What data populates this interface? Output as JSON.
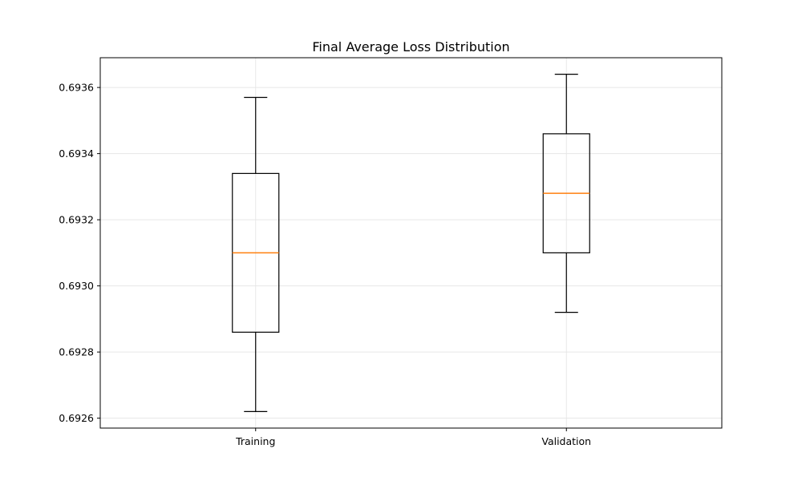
{
  "chart_data": {
    "type": "box",
    "title": "Final Average Loss Distribution",
    "xlabel": "",
    "ylabel": "",
    "categories": [
      "Training",
      "Validation"
    ],
    "boxes": [
      {
        "name": "Training",
        "whisker_low": 0.69262,
        "q1": 0.69286,
        "median": 0.6931,
        "q3": 0.69334,
        "whisker_high": 0.69357
      },
      {
        "name": "Validation",
        "whisker_low": 0.69292,
        "q1": 0.6931,
        "median": 0.69328,
        "q3": 0.69346,
        "whisker_high": 0.69364
      }
    ],
    "ylim": [
      0.69257,
      0.69369
    ],
    "yticks": [
      0.6926,
      0.6928,
      0.693,
      0.6932,
      0.6934,
      0.6936
    ],
    "ytick_labels": [
      "0.6926",
      "0.6928",
      "0.6930",
      "0.6932",
      "0.6934",
      "0.6936"
    ],
    "grid": true,
    "colors": {
      "box": "#000000",
      "median": "#ff7f0e",
      "grid": "#e6e6e6"
    }
  }
}
